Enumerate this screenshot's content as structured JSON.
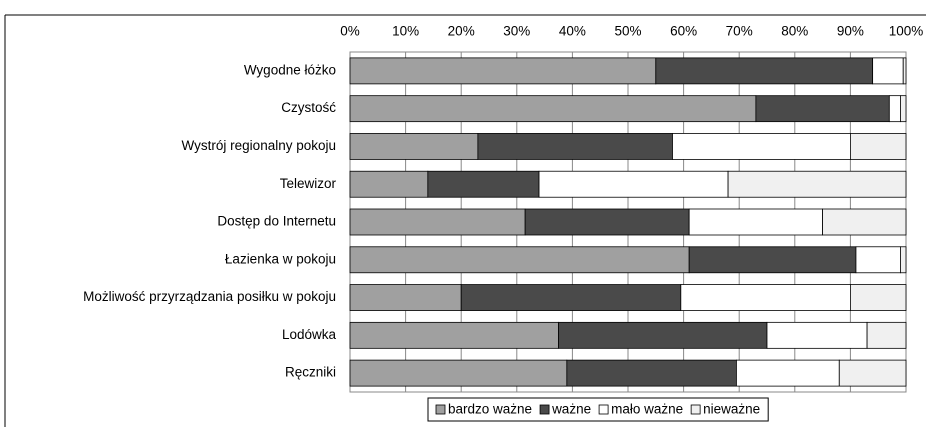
{
  "chart_data": {
    "type": "stacked-barh",
    "categories": [
      "Wygodne łóżko",
      "Czystość",
      "Wystrój regionalny pokoju",
      "Telewizor",
      "Dostęp do Internetu",
      "Łazienka w pokoju",
      "Możliwość przyrządzania posiłku w pokoju",
      "Lodówka",
      "Ręczniki"
    ],
    "series": [
      {
        "name": "bardzo ważne",
        "color": "#a0a0a0",
        "values": [
          55,
          73,
          23,
          14,
          31.5,
          61,
          20,
          37.5,
          39
        ]
      },
      {
        "name": "ważne",
        "color": "#4a4a4a",
        "values": [
          39,
          24,
          35,
          20,
          29.5,
          30,
          39.5,
          37.5,
          30.5
        ]
      },
      {
        "name": "mało ważne",
        "color": "#ffffff",
        "values": [
          5.5,
          2,
          32,
          34,
          24,
          8,
          30.5,
          18,
          18.5
        ]
      },
      {
        "name": "nieważne",
        "color": "#f0f0f0",
        "values": [
          0.5,
          1,
          10,
          32,
          15,
          1,
          10,
          7,
          12
        ]
      }
    ],
    "xlim": [
      0,
      100
    ],
    "xticks": [
      {
        "value": 0,
        "label": "0%"
      },
      {
        "value": 10,
        "label": "10%"
      },
      {
        "value": 20,
        "label": "20%"
      },
      {
        "value": 30,
        "label": "30%"
      },
      {
        "value": 40,
        "label": "40%"
      },
      {
        "value": 50,
        "label": "50%"
      },
      {
        "value": 60,
        "label": "60%"
      },
      {
        "value": 70,
        "label": "70%"
      },
      {
        "value": 80,
        "label": "80%"
      },
      {
        "value": 90,
        "label": "90%"
      },
      {
        "value": 100,
        "label": "100%"
      }
    ],
    "grid": true,
    "legend": "bottom"
  }
}
